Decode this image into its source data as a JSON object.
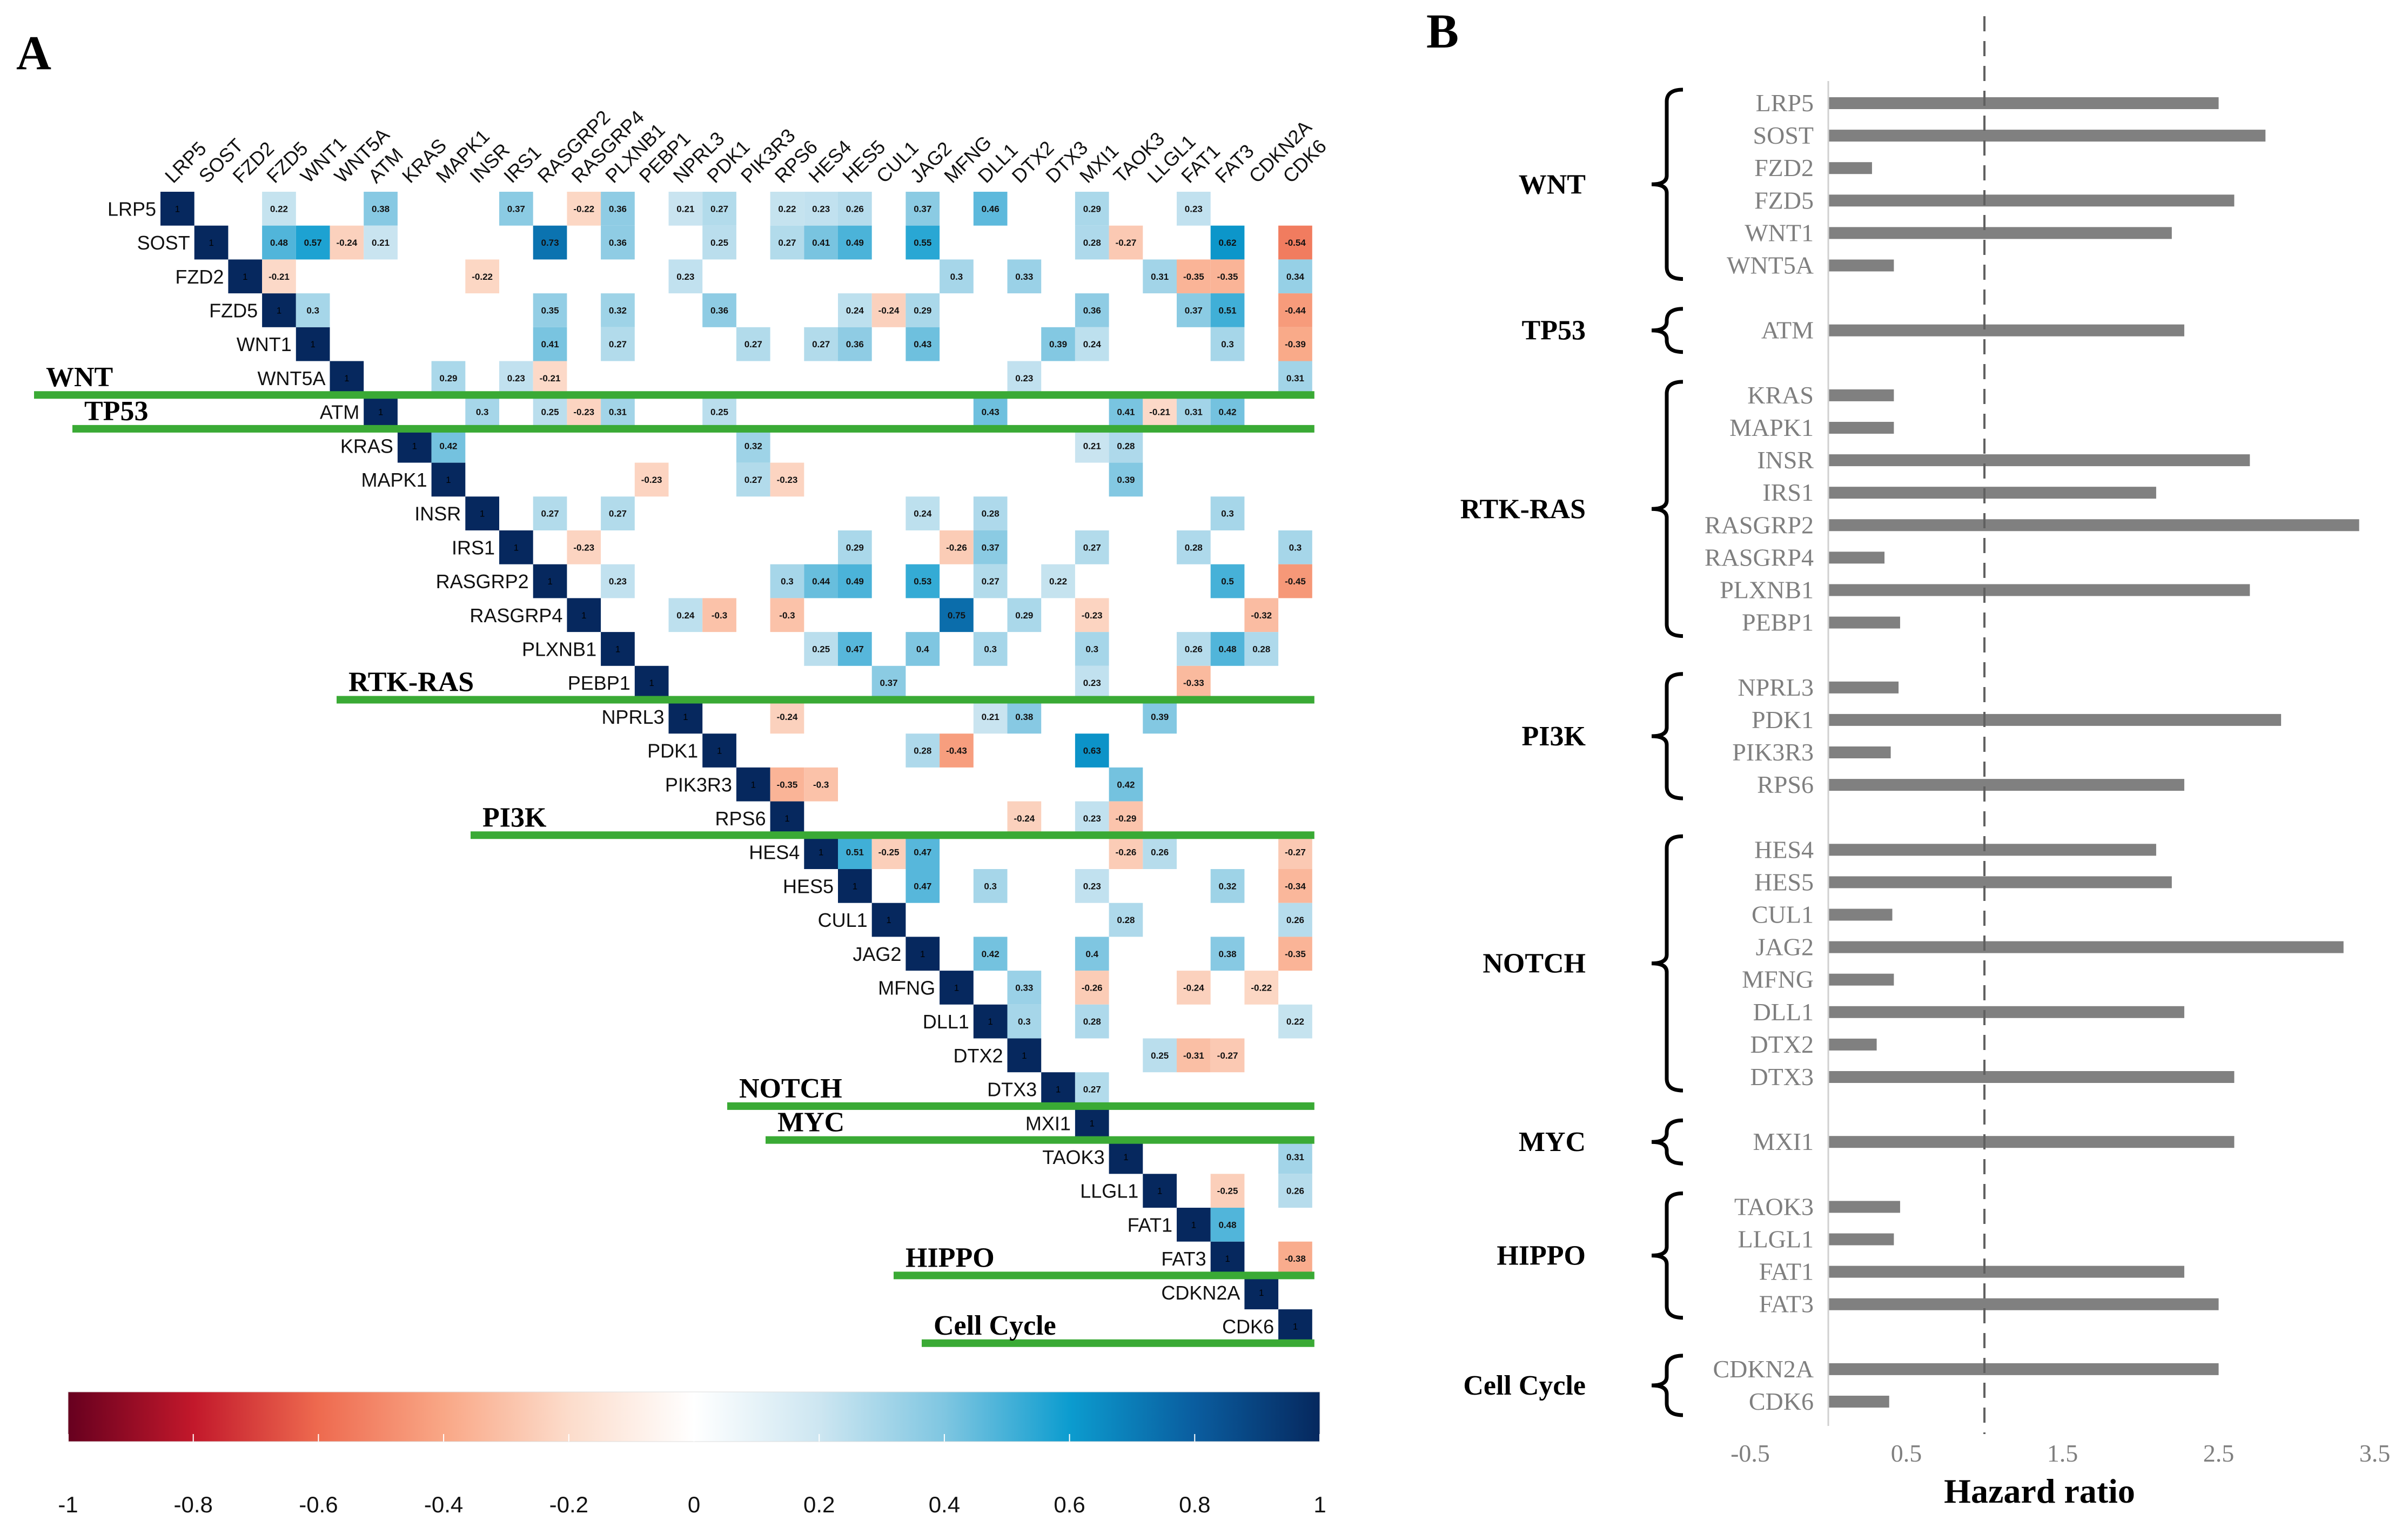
{
  "panel_a": {
    "label": "A",
    "genes": [
      "LRP5",
      "SOST",
      "FZD2",
      "FZD5",
      "WNT1",
      "WNT5A",
      "ATM",
      "KRAS",
      "MAPK1",
      "INSR",
      "IRS1",
      "RASGRP2",
      "RASGRP4",
      "PLXNB1",
      "PEBP1",
      "NPRL3",
      "PDK1",
      "PIK3R3",
      "RPS6",
      "HES4",
      "HES5",
      "CUL1",
      "JAG2",
      "MFNG",
      "DLL1",
      "DTX2",
      "DTX3",
      "MXI1",
      "TAOK3",
      "LLGL1",
      "FAT1",
      "FAT3",
      "CDKN2A",
      "CDK6"
    ],
    "groups": [
      {
        "name": "WNT",
        "first": 0,
        "last": 5
      },
      {
        "name": "TP53",
        "first": 6,
        "last": 6
      },
      {
        "name": "RTK-RAS",
        "first": 7,
        "last": 14
      },
      {
        "name": "PI3K",
        "first": 15,
        "last": 18
      },
      {
        "name": "NOTCH",
        "first": 19,
        "last": 26
      },
      {
        "name": "MYC",
        "first": 27,
        "last": 27
      },
      {
        "name": "HIPPO",
        "first": 28,
        "last": 31
      },
      {
        "name": "Cell Cycle",
        "first": 32,
        "last": 33
      }
    ],
    "colorbar": {
      "ticks": [
        "-1",
        "-0.8",
        "-0.6",
        "-0.4",
        "-0.2",
        "0",
        "0.2",
        "0.4",
        "0.6",
        "0.8",
        "1"
      ],
      "range": [
        -1,
        1
      ],
      "colors": {
        "-1": "#67001f",
        "-0.8": "#c2182b",
        "-0.6": "#ee6a4f",
        "-0.4": "#f9a786",
        "-0.2": "#fcdccb",
        "0": "#ffffff",
        "0.2": "#cde6f1",
        "0.4": "#7fc6e1",
        "0.6": "#0c9ccf",
        "0.8": "#0a5d9f",
        "1": "#06285e"
      }
    }
  },
  "chart_data": [
    {
      "type": "heatmap",
      "title": "",
      "note": "upper-triangle correlation matrix, [row, col, value]; diagonal = 1",
      "cells": [
        [
          0,
          3,
          0.22
        ],
        [
          0,
          6,
          0.38
        ],
        [
          0,
          10,
          0.37
        ],
        [
          0,
          12,
          -0.22
        ],
        [
          0,
          13,
          0.36
        ],
        [
          0,
          15,
          0.21
        ],
        [
          0,
          16,
          0.27
        ],
        [
          0,
          18,
          0.22
        ],
        [
          0,
          19,
          0.23
        ],
        [
          0,
          20,
          0.26
        ],
        [
          0,
          22,
          0.37
        ],
        [
          0,
          24,
          0.46
        ],
        [
          0,
          27,
          0.29
        ],
        [
          0,
          30,
          0.23
        ],
        [
          1,
          3,
          0.48
        ],
        [
          1,
          4,
          0.57
        ],
        [
          1,
          5,
          -0.24
        ],
        [
          1,
          6,
          0.21
        ],
        [
          1,
          11,
          0.73
        ],
        [
          1,
          13,
          0.36
        ],
        [
          1,
          16,
          0.25
        ],
        [
          1,
          18,
          0.27
        ],
        [
          1,
          19,
          0.41
        ],
        [
          1,
          20,
          0.49
        ],
        [
          1,
          22,
          0.55
        ],
        [
          1,
          27,
          0.28
        ],
        [
          1,
          28,
          -0.27
        ],
        [
          1,
          31,
          0.62
        ],
        [
          1,
          33,
          -0.54
        ],
        [
          2,
          3,
          -0.21
        ],
        [
          2,
          9,
          -0.22
        ],
        [
          2,
          15,
          0.23
        ],
        [
          2,
          23,
          0.3
        ],
        [
          2,
          25,
          0.33
        ],
        [
          2,
          29,
          0.31
        ],
        [
          2,
          30,
          -0.35
        ],
        [
          2,
          31,
          -0.35
        ],
        [
          2,
          33,
          0.34
        ],
        [
          3,
          4,
          0.3
        ],
        [
          3,
          11,
          0.35
        ],
        [
          3,
          13,
          0.32
        ],
        [
          3,
          16,
          0.36
        ],
        [
          3,
          20,
          0.24
        ],
        [
          3,
          21,
          -0.24
        ],
        [
          3,
          22,
          0.29
        ],
        [
          3,
          27,
          0.36
        ],
        [
          3,
          30,
          0.37
        ],
        [
          3,
          31,
          0.51
        ],
        [
          3,
          33,
          -0.44
        ],
        [
          4,
          11,
          0.41
        ],
        [
          4,
          13,
          0.27
        ],
        [
          4,
          17,
          0.27
        ],
        [
          4,
          19,
          0.27
        ],
        [
          4,
          20,
          0.36
        ],
        [
          4,
          22,
          0.43
        ],
        [
          4,
          26,
          0.39
        ],
        [
          4,
          27,
          0.24
        ],
        [
          4,
          31,
          0.3
        ],
        [
          4,
          33,
          -0.39
        ],
        [
          5,
          8,
          0.29
        ],
        [
          5,
          10,
          0.23
        ],
        [
          5,
          11,
          -0.21
        ],
        [
          5,
          25,
          0.23
        ],
        [
          5,
          33,
          0.31
        ],
        [
          6,
          9,
          0.3
        ],
        [
          6,
          11,
          0.25
        ],
        [
          6,
          12,
          -0.23
        ],
        [
          6,
          13,
          0.31
        ],
        [
          6,
          16,
          0.25
        ],
        [
          6,
          24,
          0.43
        ],
        [
          6,
          28,
          0.41
        ],
        [
          6,
          29,
          -0.21
        ],
        [
          6,
          30,
          0.31
        ],
        [
          6,
          31,
          0.42
        ],
        [
          7,
          8,
          0.42
        ],
        [
          7,
          17,
          0.32
        ],
        [
          7,
          27,
          0.21
        ],
        [
          7,
          28,
          0.28
        ],
        [
          8,
          14,
          -0.23
        ],
        [
          8,
          17,
          0.27
        ],
        [
          8,
          18,
          -0.23
        ],
        [
          8,
          28,
          0.39
        ],
        [
          9,
          11,
          0.27
        ],
        [
          9,
          13,
          0.27
        ],
        [
          9,
          22,
          0.24
        ],
        [
          9,
          24,
          0.28
        ],
        [
          9,
          31,
          0.3
        ],
        [
          10,
          12,
          -0.23
        ],
        [
          10,
          20,
          0.29
        ],
        [
          10,
          23,
          -0.26
        ],
        [
          10,
          24,
          0.37
        ],
        [
          10,
          27,
          0.27
        ],
        [
          10,
          30,
          0.28
        ],
        [
          10,
          33,
          0.3
        ],
        [
          11,
          13,
          0.23
        ],
        [
          11,
          18,
          0.3
        ],
        [
          11,
          19,
          0.44
        ],
        [
          11,
          20,
          0.49
        ],
        [
          11,
          22,
          0.53
        ],
        [
          11,
          24,
          0.27
        ],
        [
          11,
          26,
          0.22
        ],
        [
          11,
          31,
          0.5
        ],
        [
          11,
          33,
          -0.45
        ],
        [
          12,
          15,
          0.24
        ],
        [
          12,
          16,
          -0.3
        ],
        [
          12,
          18,
          -0.3
        ],
        [
          12,
          23,
          0.75
        ],
        [
          12,
          25,
          0.29
        ],
        [
          12,
          27,
          -0.23
        ],
        [
          12,
          32,
          -0.32
        ],
        [
          13,
          19,
          0.25
        ],
        [
          13,
          20,
          0.47
        ],
        [
          13,
          22,
          0.4
        ],
        [
          13,
          24,
          0.3
        ],
        [
          13,
          27,
          0.3
        ],
        [
          13,
          30,
          0.26
        ],
        [
          13,
          31,
          0.48
        ],
        [
          13,
          32,
          0.28
        ],
        [
          14,
          21,
          0.37
        ],
        [
          14,
          27,
          0.23
        ],
        [
          14,
          30,
          -0.33
        ],
        [
          15,
          18,
          -0.24
        ],
        [
          15,
          24,
          0.21
        ],
        [
          15,
          25,
          0.38
        ],
        [
          15,
          29,
          0.39
        ],
        [
          16,
          22,
          0.28
        ],
        [
          16,
          23,
          -0.43
        ],
        [
          16,
          27,
          0.63
        ],
        [
          17,
          18,
          -0.35
        ],
        [
          17,
          19,
          -0.3
        ],
        [
          17,
          28,
          0.42
        ],
        [
          18,
          25,
          -0.24
        ],
        [
          18,
          27,
          0.23
        ],
        [
          18,
          28,
          -0.29
        ],
        [
          19,
          20,
          0.51
        ],
        [
          19,
          21,
          -0.25
        ],
        [
          19,
          22,
          0.47
        ],
        [
          19,
          28,
          -0.26
        ],
        [
          19,
          29,
          0.26
        ],
        [
          19,
          33,
          -0.27
        ],
        [
          20,
          22,
          0.47
        ],
        [
          20,
          24,
          0.3
        ],
        [
          20,
          27,
          0.23
        ],
        [
          20,
          31,
          0.32
        ],
        [
          20,
          33,
          -0.34
        ],
        [
          21,
          28,
          0.28
        ],
        [
          21,
          33,
          0.26
        ],
        [
          22,
          24,
          0.42
        ],
        [
          22,
          27,
          0.4
        ],
        [
          22,
          31,
          0.38
        ],
        [
          22,
          33,
          -0.35
        ],
        [
          23,
          25,
          0.33
        ],
        [
          23,
          27,
          -0.26
        ],
        [
          23,
          30,
          -0.24
        ],
        [
          23,
          32,
          -0.22
        ],
        [
          24,
          25,
          0.3
        ],
        [
          24,
          27,
          0.28
        ],
        [
          24,
          33,
          0.22
        ],
        [
          25,
          29,
          0.25
        ],
        [
          25,
          30,
          -0.31
        ],
        [
          25,
          31,
          -0.27
        ],
        [
          26,
          27,
          0.27
        ],
        [
          28,
          33,
          0.31
        ],
        [
          29,
          31,
          -0.25
        ],
        [
          29,
          33,
          0.26
        ],
        [
          30,
          31,
          0.48
        ],
        [
          31,
          33,
          -0.38
        ]
      ]
    },
    {
      "type": "bar",
      "panel_label": "B",
      "orientation": "horizontal",
      "xlabel": "Hazard ratio",
      "xlim": [
        -0.5,
        3.5
      ],
      "xticks": [
        "-0.5",
        "0.5",
        "1.5",
        "2.5",
        "3.5"
      ],
      "reference_line": 1.0,
      "bar_color": "#808080",
      "groups": [
        {
          "name": "WNT",
          "items": [
            {
              "gene": "LRP5",
              "value": 2.5
            },
            {
              "gene": "SOST",
              "value": 2.8
            },
            {
              "gene": "FZD2",
              "value": 0.28
            },
            {
              "gene": "FZD5",
              "value": 2.6
            },
            {
              "gene": "WNT1",
              "value": 2.2
            },
            {
              "gene": "WNT5A",
              "value": 0.42
            }
          ]
        },
        {
          "name": "TP53",
          "items": [
            {
              "gene": "ATM",
              "value": 2.28
            }
          ]
        },
        {
          "name": "RTK-RAS",
          "items": [
            {
              "gene": "KRAS",
              "value": 0.42
            },
            {
              "gene": "MAPK1",
              "value": 0.42
            },
            {
              "gene": "INSR",
              "value": 2.7
            },
            {
              "gene": "IRS1",
              "value": 2.1
            },
            {
              "gene": "RASGRP2",
              "value": 3.4
            },
            {
              "gene": "RASGRP4",
              "value": 0.36
            },
            {
              "gene": "PLXNB1",
              "value": 2.7
            },
            {
              "gene": "PEBP1",
              "value": 0.46
            }
          ]
        },
        {
          "name": "PI3K",
          "items": [
            {
              "gene": "NPRL3",
              "value": 0.45
            },
            {
              "gene": "PDK1",
              "value": 2.9
            },
            {
              "gene": "PIK3R3",
              "value": 0.4
            },
            {
              "gene": "RPS6",
              "value": 2.28
            }
          ]
        },
        {
          "name": "NOTCH",
          "items": [
            {
              "gene": "HES4",
              "value": 2.1
            },
            {
              "gene": "HES5",
              "value": 2.2
            },
            {
              "gene": "CUL1",
              "value": 0.41
            },
            {
              "gene": "JAG2",
              "value": 3.3
            },
            {
              "gene": "MFNG",
              "value": 0.42
            },
            {
              "gene": "DLL1",
              "value": 2.28
            },
            {
              "gene": "DTX2",
              "value": 0.31
            },
            {
              "gene": "DTX3",
              "value": 2.6
            }
          ]
        },
        {
          "name": "MYC",
          "items": [
            {
              "gene": "MXI1",
              "value": 2.6
            }
          ]
        },
        {
          "name": "HIPPO",
          "items": [
            {
              "gene": "TAOK3",
              "value": 0.46
            },
            {
              "gene": "LLGL1",
              "value": 0.42
            },
            {
              "gene": "FAT1",
              "value": 2.28
            },
            {
              "gene": "FAT3",
              "value": 2.5
            }
          ]
        },
        {
          "name": "Cell Cycle",
          "items": [
            {
              "gene": "CDKN2A",
              "value": 2.5
            },
            {
              "gene": "CDK6",
              "value": 0.39
            }
          ]
        }
      ]
    }
  ]
}
